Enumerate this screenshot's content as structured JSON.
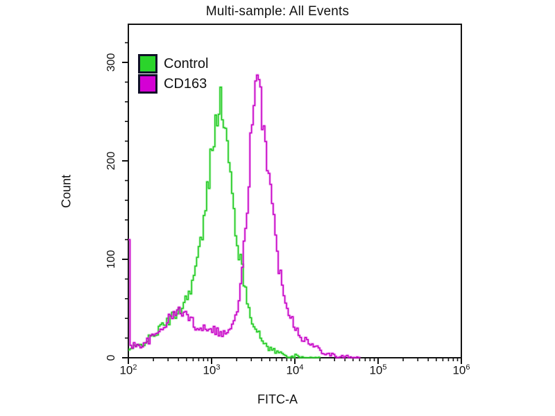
{
  "chart_data": {
    "type": "line",
    "subtype": "flow-cytometry-overlay-histogram",
    "title": "Multi-sample: All Events",
    "xlabel": "FITC-A",
    "ylabel": "Count",
    "x_scale": "log",
    "x_range": [
      100,
      1000000
    ],
    "y_range": [
      0,
      339
    ],
    "grid": "off",
    "legend_position": "top-left-inside",
    "y_major_ticks": [
      0,
      100,
      200,
      300
    ],
    "y_minor_tick_step": 20,
    "x_major_tick_exponents": [
      2,
      3,
      4,
      5,
      6
    ],
    "axis_color": "#111111",
    "legend": [
      {
        "label": "Control",
        "color": "#2bd42b"
      },
      {
        "label": "CD163",
        "color": "#d400d4"
      }
    ],
    "series": [
      {
        "name": "Control",
        "color": "#1ec91e",
        "glow": "rgba(120,230,120,0.45)",
        "peak": {
          "x": 1200,
          "count": 262
        },
        "points": [
          [
            100,
            8
          ],
          [
            130,
            12
          ],
          [
            160,
            17
          ],
          [
            200,
            23
          ],
          [
            250,
            32
          ],
          [
            300,
            38
          ],
          [
            360,
            44
          ],
          [
            430,
            52
          ],
          [
            500,
            62
          ],
          [
            600,
            82
          ],
          [
            700,
            108
          ],
          [
            800,
            138
          ],
          [
            900,
            178
          ],
          [
            1000,
            218
          ],
          [
            1100,
            248
          ],
          [
            1200,
            262
          ],
          [
            1320,
            252
          ],
          [
            1450,
            228
          ],
          [
            1600,
            192
          ],
          [
            1800,
            152
          ],
          [
            2000,
            118
          ],
          [
            2300,
            86
          ],
          [
            2600,
            60
          ],
          [
            3000,
            40
          ],
          [
            3500,
            25
          ],
          [
            4200,
            15
          ],
          [
            5000,
            9
          ],
          [
            6300,
            5
          ],
          [
            8000,
            2
          ],
          [
            10000,
            1
          ],
          [
            13000,
            0
          ],
          [
            20000,
            0
          ]
        ]
      },
      {
        "name": "CD163",
        "color": "#c400c4",
        "glow": "rgba(225,70,225,0.40)",
        "peak": {
          "x": 3500,
          "count": 275
        },
        "boundary_spike": {
          "x": 100,
          "count": 120
        },
        "points": [
          [
            100,
            120
          ],
          [
            103,
            13
          ],
          [
            130,
            12
          ],
          [
            170,
            17
          ],
          [
            220,
            25
          ],
          [
            280,
            36
          ],
          [
            350,
            45
          ],
          [
            430,
            48
          ],
          [
            520,
            41
          ],
          [
            620,
            33
          ],
          [
            750,
            30
          ],
          [
            900,
            32
          ],
          [
            1100,
            28
          ],
          [
            1300,
            24
          ],
          [
            1550,
            27
          ],
          [
            1800,
            34
          ],
          [
            2000,
            48
          ],
          [
            2300,
            88
          ],
          [
            2600,
            152
          ],
          [
            2900,
            218
          ],
          [
            3200,
            258
          ],
          [
            3500,
            275
          ],
          [
            3800,
            260
          ],
          [
            4200,
            238
          ],
          [
            4700,
            195
          ],
          [
            5300,
            150
          ],
          [
            6000,
            106
          ],
          [
            7000,
            70
          ],
          [
            8500,
            46
          ],
          [
            10000,
            31
          ],
          [
            12000,
            21
          ],
          [
            15000,
            14
          ],
          [
            19000,
            9
          ],
          [
            24000,
            5
          ],
          [
            30000,
            2
          ],
          [
            38000,
            1
          ],
          [
            48000,
            0
          ],
          [
            60000,
            0
          ]
        ]
      }
    ]
  }
}
